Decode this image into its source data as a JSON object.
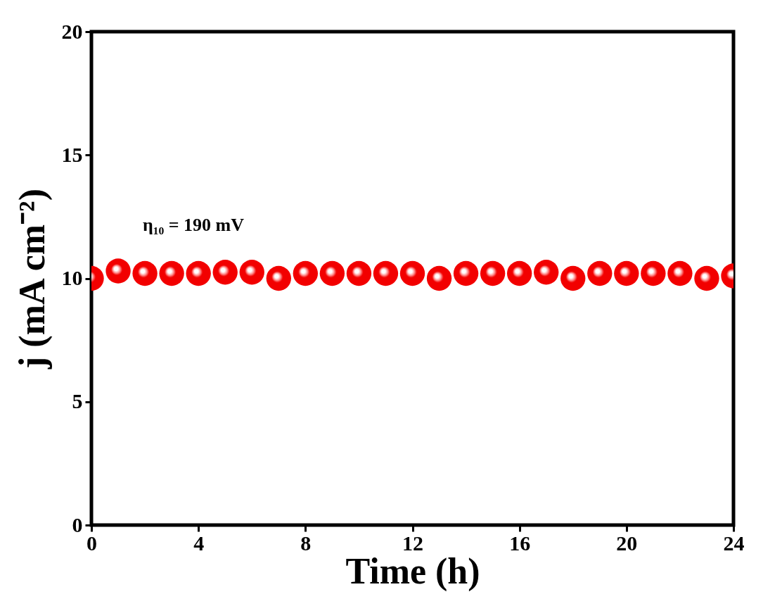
{
  "chart_data": {
    "type": "scatter",
    "xlabel": "Time (h)",
    "ylabel": "j (mA cm⁻²)",
    "x": [
      0,
      1,
      2,
      3,
      4,
      5,
      6,
      7,
      8,
      9,
      10,
      11,
      12,
      13,
      14,
      15,
      16,
      17,
      18,
      19,
      20,
      21,
      22,
      23,
      24
    ],
    "series": [
      {
        "color": "#f20000",
        "values": [
          10.0,
          10.3,
          10.2,
          10.2,
          10.2,
          10.25,
          10.25,
          10.0,
          10.2,
          10.2,
          10.2,
          10.2,
          10.2,
          10.0,
          10.2,
          10.2,
          10.2,
          10.25,
          10.0,
          10.2,
          10.2,
          10.2,
          10.2,
          10.0,
          10.1
        ]
      }
    ],
    "xlim": [
      0,
      24
    ],
    "xticks": [
      0,
      4,
      8,
      12,
      16,
      20,
      24
    ],
    "ylim": [
      0,
      20
    ],
    "yticks": [
      0,
      5,
      10,
      15,
      20
    ],
    "marker": "circle",
    "grid": false,
    "annotations": [
      "η₁₀ = 190 mV"
    ]
  }
}
